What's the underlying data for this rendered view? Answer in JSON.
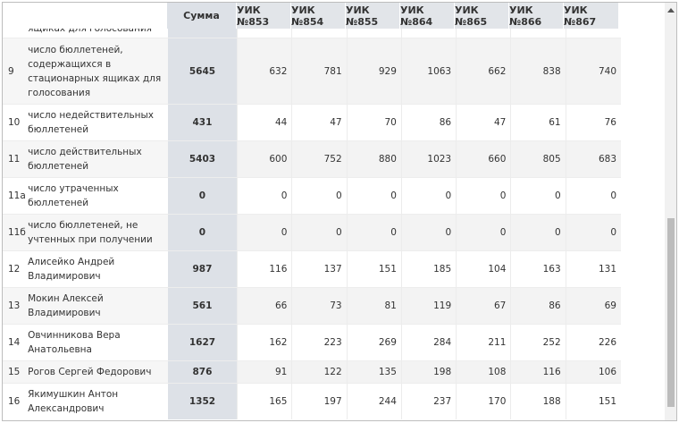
{
  "header": {
    "sum_label": "Сумма",
    "uik_labels": [
      "УИК №853",
      "УИК №854",
      "УИК №855",
      "УИК №864",
      "УИК №865",
      "УИК №866",
      "УИК №867"
    ]
  },
  "partial_row": {
    "name": "ящиках для голосования"
  },
  "rows": [
    {
      "num": "9",
      "name": "число бюллетеней, содержащихся в стационарных ящиках для голосования",
      "sum": "5645",
      "values": [
        "632",
        "781",
        "929",
        "1063",
        "662",
        "838",
        "740"
      ]
    },
    {
      "num": "10",
      "name": "число недействительных бюллетеней",
      "sum": "431",
      "values": [
        "44",
        "47",
        "70",
        "86",
        "47",
        "61",
        "76"
      ]
    },
    {
      "num": "11",
      "name": "число действительных бюллетеней",
      "sum": "5403",
      "values": [
        "600",
        "752",
        "880",
        "1023",
        "660",
        "805",
        "683"
      ]
    },
    {
      "num": "11а",
      "name": "число утраченных бюллетеней",
      "sum": "0",
      "values": [
        "0",
        "0",
        "0",
        "0",
        "0",
        "0",
        "0"
      ]
    },
    {
      "num": "11б",
      "name": "число бюллетеней, не учтенных при получении",
      "sum": "0",
      "values": [
        "0",
        "0",
        "0",
        "0",
        "0",
        "0",
        "0"
      ]
    },
    {
      "num": "12",
      "name": "Алисейко Андрей Владимирович",
      "sum": "987",
      "values": [
        "116",
        "137",
        "151",
        "185",
        "104",
        "163",
        "131"
      ]
    },
    {
      "num": "13",
      "name": "Мокин Алексей Владимирович",
      "sum": "561",
      "values": [
        "66",
        "73",
        "81",
        "119",
        "67",
        "86",
        "69"
      ]
    },
    {
      "num": "14",
      "name": "Овчинникова Вера Анатольевна",
      "sum": "1627",
      "values": [
        "162",
        "223",
        "269",
        "284",
        "211",
        "252",
        "226"
      ]
    },
    {
      "num": "15",
      "name": "Рогов Сергей Федорович",
      "sum": "876",
      "values": [
        "91",
        "122",
        "135",
        "198",
        "108",
        "116",
        "106"
      ]
    },
    {
      "num": "16",
      "name": "Якимушкин Антон Александрович",
      "sum": "1352",
      "values": [
        "165",
        "197",
        "244",
        "237",
        "170",
        "188",
        "151"
      ]
    }
  ],
  "colors": {
    "sum_column_bg": "#dde1e7",
    "header_bg": "#e2e5e9",
    "stripe_bg": "#f3f3f3",
    "scroll_thumb": "#bcbcbc"
  }
}
